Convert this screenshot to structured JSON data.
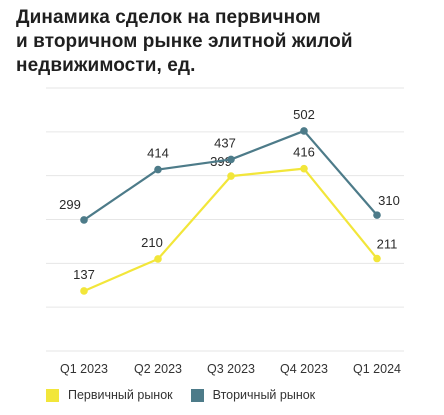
{
  "title_lines": [
    "Динамика сделок на первичном",
    "и вторичном рынке элитной жилой",
    "недвижимости, ед."
  ],
  "chart_data": {
    "type": "line",
    "categories": [
      "Q1 2023",
      "Q2 2023",
      "Q3 2023",
      "Q4 2023",
      "Q1 2024"
    ],
    "series": [
      {
        "name": "Первичный рынок",
        "values": [
          137,
          210,
          399,
          416,
          211
        ],
        "color": "#f2e63a"
      },
      {
        "name": "Вторичный рынок",
        "values": [
          299,
          414,
          437,
          502,
          310
        ],
        "color": "#4d7b89"
      }
    ],
    "ylim": [
      0,
      600
    ],
    "grid": true,
    "legend": "bottom-left"
  }
}
